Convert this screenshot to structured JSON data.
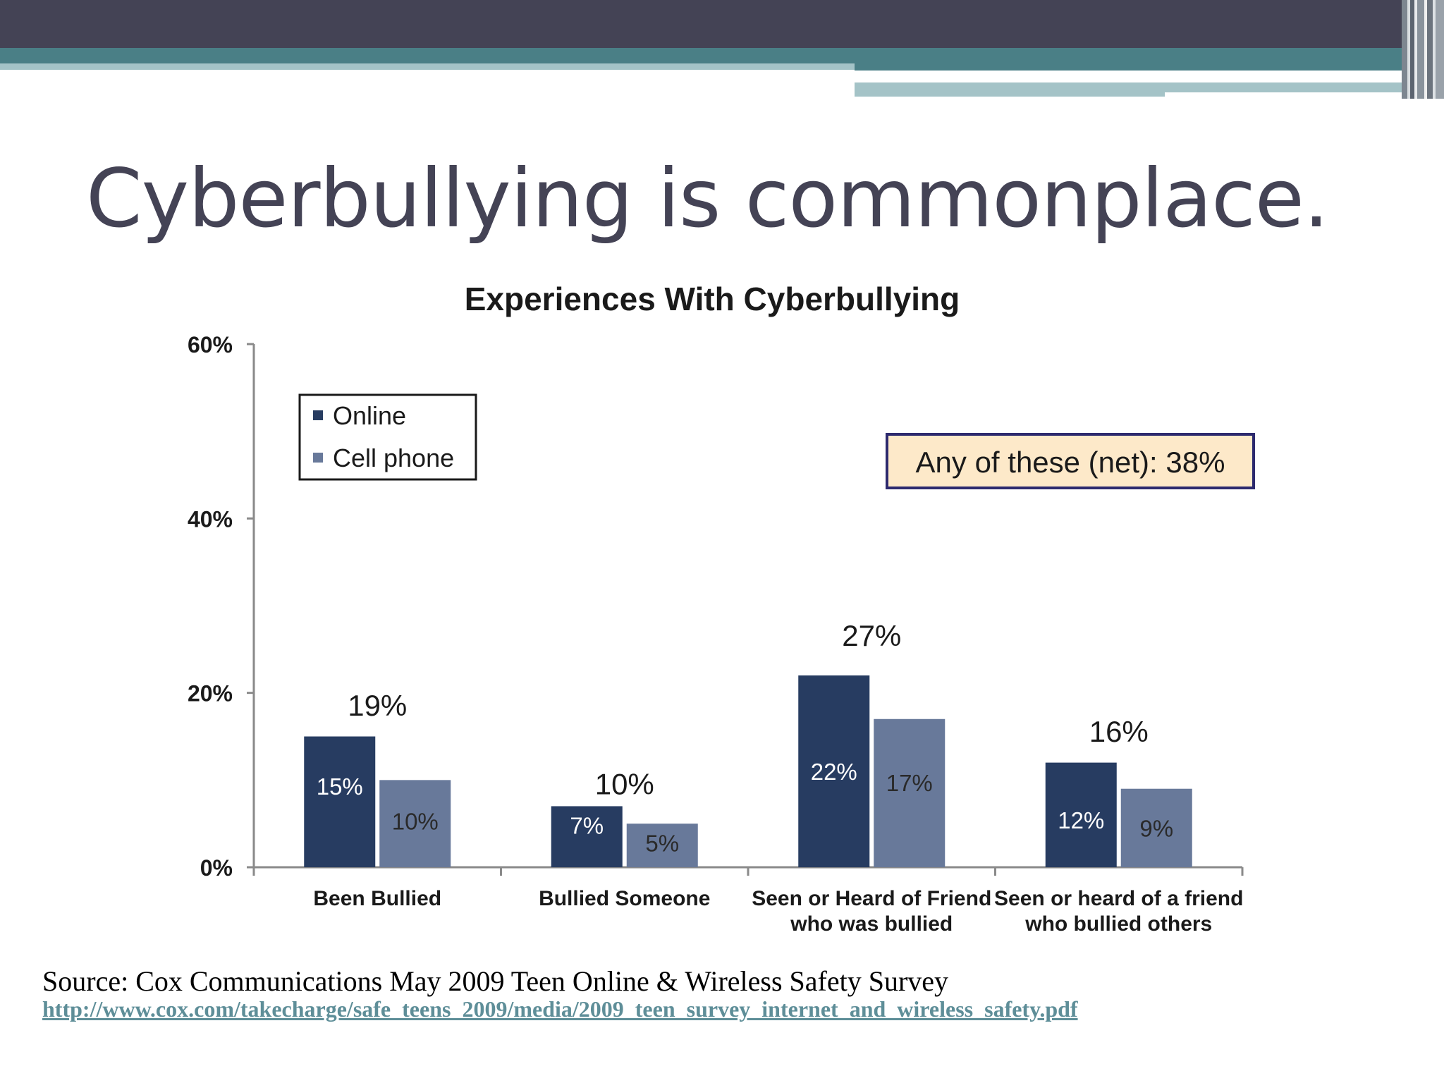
{
  "slide": {
    "title": "Cyberbullying is commonplace.",
    "source": "Source: Cox Communications May 2009 Teen Online & Wireless Safety Survey",
    "source_url": "http://www.cox.com/takecharge/safe_teens_2009/media/2009_teen_survey_internet_and_wireless_safety.pdf"
  },
  "colors": {
    "online": "#273c61",
    "cell_phone": "#68799a",
    "callout_bg": "#fde9c9",
    "callout_border": "#2d2a6e",
    "header_dark": "#444355",
    "header_teal": "#4a7f86"
  },
  "chart_data": {
    "type": "bar",
    "title": "Experiences With Cyberbullying",
    "categories": [
      [
        "Been Bullied"
      ],
      [
        "Bullied Someone"
      ],
      [
        "Seen or Heard of Friend",
        "who was bullied"
      ],
      [
        "Seen or heard of a friend",
        "who bullied others"
      ]
    ],
    "series": [
      {
        "name": "Online",
        "values": [
          15,
          7,
          22,
          12
        ],
        "labels": [
          "15%",
          "7%",
          "22%",
          "12%"
        ]
      },
      {
        "name": "Cell phone",
        "values": [
          10,
          5,
          17,
          9
        ],
        "labels": [
          "10%",
          "5%",
          "17%",
          "9%"
        ]
      }
    ],
    "totals": [
      19,
      10,
      27,
      16
    ],
    "total_labels": [
      "19%",
      "10%",
      "27%",
      "16%"
    ],
    "ylim": [
      0,
      60
    ],
    "yticks": [
      0,
      20,
      40,
      60
    ],
    "ytick_labels": [
      "0%",
      "20%",
      "40%",
      "60%"
    ],
    "legend": {
      "position": "top-left",
      "entries": [
        "Online",
        "Cell phone"
      ]
    },
    "annotation": "Any of these (net): 38%",
    "xlabel": "",
    "ylabel": ""
  }
}
